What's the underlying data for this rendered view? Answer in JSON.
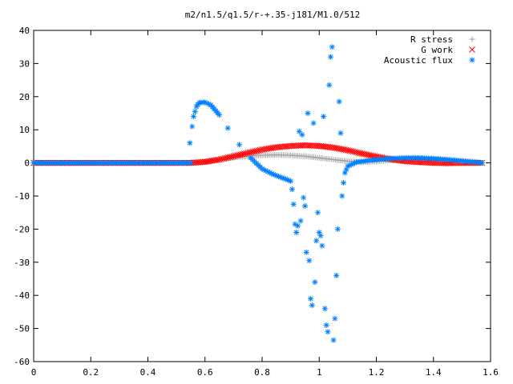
{
  "chart_data": {
    "type": "scatter",
    "title": "m2/n1.5/q1.5/r-+.35-j181/M1.0/512",
    "xlim": [
      0,
      1.6
    ],
    "ylim": [
      -60,
      40
    ],
    "x_ticks": [
      "0",
      "0.2",
      "0.4",
      "0.6",
      "0.8",
      "1",
      "1.2",
      "1.4",
      "1.6"
    ],
    "y_ticks": [
      "40",
      "30",
      "20",
      "10",
      "0",
      "-10",
      "-20",
      "-30",
      "-40",
      "-50",
      "-60"
    ],
    "legend_position": "top-right",
    "grid": false,
    "series": [
      {
        "name": "R stress",
        "marker": "plus",
        "color": "#a0a0a0",
        "points": [
          [
            0.0,
            0
          ],
          [
            0.55,
            0
          ],
          [
            0.6,
            0.3
          ],
          [
            0.65,
            1.0
          ],
          [
            0.7,
            1.6
          ],
          [
            0.75,
            2.0
          ],
          [
            0.8,
            2.3
          ],
          [
            0.85,
            2.4
          ],
          [
            0.9,
            2.3
          ],
          [
            0.95,
            2.0
          ],
          [
            1.0,
            1.5
          ],
          [
            1.05,
            1.0
          ],
          [
            1.1,
            0.5
          ],
          [
            1.15,
            0.2
          ],
          [
            1.2,
            0.4
          ],
          [
            1.25,
            0.8
          ],
          [
            1.3,
            1.0
          ],
          [
            1.35,
            1.0
          ],
          [
            1.4,
            0.9
          ],
          [
            1.45,
            0.8
          ],
          [
            1.5,
            0.6
          ],
          [
            1.55,
            0.2
          ],
          [
            1.57,
            0
          ]
        ]
      },
      {
        "name": "G work",
        "marker": "cross",
        "color": "#ff0000",
        "points": [
          [
            0.0,
            0
          ],
          [
            0.55,
            0
          ],
          [
            0.6,
            0.3
          ],
          [
            0.65,
            1.0
          ],
          [
            0.7,
            2.0
          ],
          [
            0.75,
            3.0
          ],
          [
            0.8,
            4.0
          ],
          [
            0.85,
            4.7
          ],
          [
            0.9,
            5.1
          ],
          [
            0.95,
            5.3
          ],
          [
            1.0,
            5.1
          ],
          [
            1.05,
            4.6
          ],
          [
            1.1,
            3.8
          ],
          [
            1.15,
            2.8
          ],
          [
            1.2,
            1.9
          ],
          [
            1.25,
            1.1
          ],
          [
            1.3,
            0.5
          ],
          [
            1.35,
            0.2
          ],
          [
            1.4,
            0.0
          ],
          [
            1.45,
            -0.1
          ],
          [
            1.5,
            0.0
          ],
          [
            1.57,
            0
          ]
        ]
      },
      {
        "name": "Acoustic flux",
        "marker": "star",
        "color": "#0080ff",
        "points": [
          [
            0.0,
            0
          ],
          [
            0.55,
            0
          ],
          [
            0.547,
            6
          ],
          [
            0.555,
            11
          ],
          [
            0.56,
            14
          ],
          [
            0.57,
            17
          ],
          [
            0.58,
            18.2
          ],
          [
            0.6,
            18.3
          ],
          [
            0.62,
            17.5
          ],
          [
            0.65,
            14.5
          ],
          [
            0.68,
            10.5
          ],
          [
            0.72,
            5.5
          ],
          [
            0.76,
            1.5
          ],
          [
            0.8,
            -1.8
          ],
          [
            0.84,
            -3.5
          ],
          [
            0.87,
            -4.5
          ],
          [
            0.9,
            -5.5
          ],
          [
            0.905,
            -8
          ],
          [
            0.91,
            -12.5
          ],
          [
            0.915,
            -18.5
          ],
          [
            0.92,
            -21
          ],
          [
            0.925,
            -19
          ],
          [
            0.93,
            9.5
          ],
          [
            0.935,
            -17.5
          ],
          [
            0.94,
            8.5
          ],
          [
            0.945,
            -10.5
          ],
          [
            0.95,
            -13
          ],
          [
            0.955,
            -27
          ],
          [
            0.96,
            15
          ],
          [
            0.965,
            -29.5
          ],
          [
            0.97,
            -41
          ],
          [
            0.975,
            -43
          ],
          [
            0.98,
            12
          ],
          [
            0.985,
            -36
          ],
          [
            0.99,
            -23.5
          ],
          [
            0.995,
            -15
          ],
          [
            1.0,
            -21
          ],
          [
            1.005,
            -22
          ],
          [
            1.01,
            -25
          ],
          [
            1.015,
            14
          ],
          [
            1.02,
            -44
          ],
          [
            1.025,
            -49
          ],
          [
            1.03,
            -51
          ],
          [
            1.035,
            23.5
          ],
          [
            1.04,
            32
          ],
          [
            1.045,
            35
          ],
          [
            1.05,
            -53.5
          ],
          [
            1.055,
            -47
          ],
          [
            1.06,
            -34
          ],
          [
            1.065,
            -20
          ],
          [
            1.07,
            18.5
          ],
          [
            1.075,
            9
          ],
          [
            1.08,
            -10
          ],
          [
            1.085,
            -6
          ],
          [
            1.09,
            -3
          ],
          [
            1.1,
            -1
          ],
          [
            1.13,
            0.2
          ],
          [
            1.18,
            0.8
          ],
          [
            1.25,
            1.3
          ],
          [
            1.3,
            1.5
          ],
          [
            1.35,
            1.5
          ],
          [
            1.4,
            1.3
          ],
          [
            1.45,
            1.0
          ],
          [
            1.5,
            0.6
          ],
          [
            1.55,
            0.2
          ],
          [
            1.57,
            0
          ]
        ]
      }
    ]
  }
}
